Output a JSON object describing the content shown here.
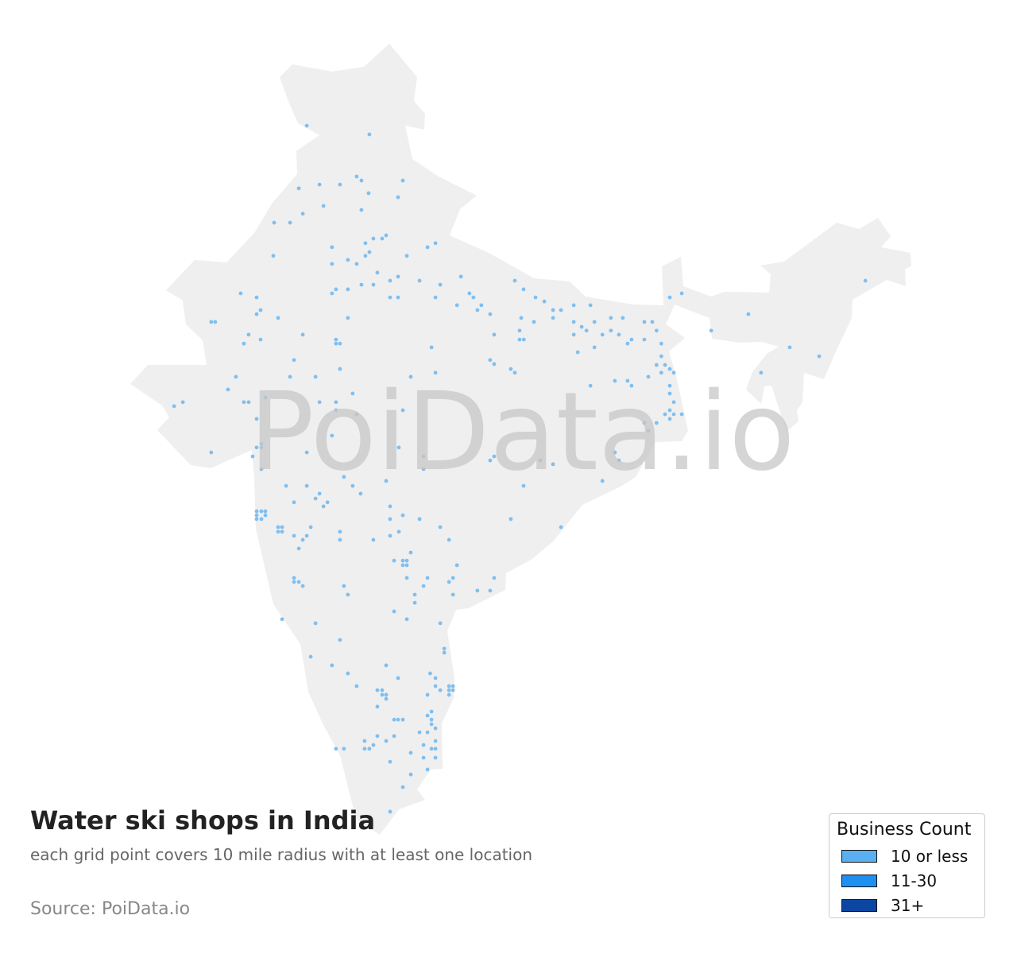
{
  "title": "Water ski shops in India",
  "subtitle": "each grid point covers 10 mile radius with at least one location",
  "source": "Source: PoiData.io",
  "watermark": "PoiData.io",
  "colors": {
    "land": "#efefef",
    "point": "#7fbff0"
  },
  "legend": {
    "title": "Business Count",
    "items": [
      {
        "label": "10 or less",
        "color": "#5aaff0"
      },
      {
        "label": "11-30",
        "color": "#1e90f0"
      },
      {
        "label": "31+",
        "color": "#0b47a1"
      }
    ]
  },
  "points": [
    [
      74.82,
      32.67
    ],
    [
      77.18,
      32.37
    ],
    [
      74.52,
      30.5
    ],
    [
      75.3,
      30.63
    ],
    [
      76.07,
      30.63
    ],
    [
      76.7,
      30.91
    ],
    [
      76.88,
      30.77
    ],
    [
      77.15,
      30.33
    ],
    [
      78.44,
      30.77
    ],
    [
      78.26,
      30.19
    ],
    [
      75.45,
      29.89
    ],
    [
      74.67,
      29.62
    ],
    [
      76.88,
      29.75
    ],
    [
      73.59,
      29.31
    ],
    [
      74.19,
      29.31
    ],
    [
      77.03,
      28.6
    ],
    [
      77.33,
      28.76
    ],
    [
      77.66,
      28.76
    ],
    [
      77.81,
      28.87
    ],
    [
      77.18,
      28.29
    ],
    [
      77.03,
      28.16
    ],
    [
      73.56,
      28.16
    ],
    [
      75.77,
      28.46
    ],
    [
      75.77,
      27.88
    ],
    [
      76.37,
      28.02
    ],
    [
      76.7,
      27.88
    ],
    [
      78.59,
      28.16
    ],
    [
      79.37,
      28.46
    ],
    [
      79.67,
      28.6
    ],
    [
      77.48,
      27.58
    ],
    [
      77.96,
      27.3
    ],
    [
      78.26,
      27.44
    ],
    [
      76.88,
      27.16
    ],
    [
      77.33,
      27.16
    ],
    [
      75.92,
      27.0
    ],
    [
      75.77,
      26.86
    ],
    [
      76.37,
      27.0
    ],
    [
      77.96,
      26.72
    ],
    [
      78.26,
      26.72
    ],
    [
      79.07,
      27.3
    ],
    [
      79.85,
      27.16
    ],
    [
      80.63,
      27.44
    ],
    [
      79.67,
      26.72
    ],
    [
      80.48,
      26.45
    ],
    [
      80.95,
      26.86
    ],
    [
      81.1,
      26.72
    ],
    [
      81.4,
      26.45
    ],
    [
      81.25,
      26.28
    ],
    [
      81.73,
      26.14
    ],
    [
      82.66,
      27.3
    ],
    [
      82.99,
      27.0
    ],
    [
      83.44,
      26.72
    ],
    [
      83.77,
      26.58
    ],
    [
      84.1,
      26.28
    ],
    [
      84.4,
      26.28
    ],
    [
      84.88,
      26.45
    ],
    [
      85.51,
      26.45
    ],
    [
      82.9,
      26.01
    ],
    [
      83.38,
      25.87
    ],
    [
      84.1,
      26.01
    ],
    [
      84.88,
      25.87
    ],
    [
      85.18,
      25.7
    ],
    [
      85.36,
      25.57
    ],
    [
      85.66,
      25.87
    ],
    [
      82.84,
      25.57
    ],
    [
      82.84,
      25.26
    ],
    [
      83.0,
      25.26
    ],
    [
      81.88,
      25.43
    ],
    [
      86.28,
      26.01
    ],
    [
      86.73,
      26.01
    ],
    [
      87.54,
      25.87
    ],
    [
      87.84,
      25.87
    ],
    [
      85.96,
      25.43
    ],
    [
      86.28,
      25.57
    ],
    [
      86.58,
      25.43
    ],
    [
      84.88,
      25.43
    ],
    [
      85.03,
      24.82
    ],
    [
      85.66,
      24.99
    ],
    [
      87.06,
      25.26
    ],
    [
      86.91,
      25.12
    ],
    [
      87.54,
      25.26
    ],
    [
      88.0,
      25.57
    ],
    [
      88.18,
      25.12
    ],
    [
      88.18,
      24.68
    ],
    [
      88.0,
      24.38
    ],
    [
      88.32,
      24.38
    ],
    [
      88.5,
      24.24
    ],
    [
      88.65,
      24.11
    ],
    [
      88.18,
      24.11
    ],
    [
      87.69,
      23.97
    ],
    [
      88.5,
      23.66
    ],
    [
      88.5,
      23.39
    ],
    [
      88.65,
      23.09
    ],
    [
      88.5,
      22.81
    ],
    [
      88.65,
      22.67
    ],
    [
      88.32,
      22.67
    ],
    [
      88.95,
      22.67
    ],
    [
      88.5,
      22.51
    ],
    [
      88.0,
      22.37
    ],
    [
      87.54,
      22.37
    ],
    [
      87.69,
      22.1
    ],
    [
      86.43,
      23.83
    ],
    [
      86.91,
      23.83
    ],
    [
      87.06,
      23.66
    ],
    [
      85.51,
      23.66
    ],
    [
      81.73,
      24.55
    ],
    [
      81.88,
      24.41
    ],
    [
      82.51,
      24.24
    ],
    [
      82.66,
      24.11
    ],
    [
      79.52,
      24.99
    ],
    [
      79.67,
      24.11
    ],
    [
      78.74,
      23.97
    ],
    [
      72.33,
      26.86
    ],
    [
      72.93,
      26.72
    ],
    [
      73.08,
      26.28
    ],
    [
      72.93,
      26.14
    ],
    [
      73.74,
      26.01
    ],
    [
      71.22,
      25.87
    ],
    [
      71.37,
      25.87
    ],
    [
      72.63,
      25.43
    ],
    [
      72.45,
      25.12
    ],
    [
      73.08,
      25.26
    ],
    [
      74.67,
      25.43
    ],
    [
      74.34,
      24.55
    ],
    [
      75.92,
      25.26
    ],
    [
      75.92,
      25.12
    ],
    [
      76.07,
      25.12
    ],
    [
      76.37,
      26.01
    ],
    [
      76.07,
      24.24
    ],
    [
      74.19,
      23.97
    ],
    [
      75.15,
      23.97
    ],
    [
      72.15,
      23.97
    ],
    [
      71.85,
      23.53
    ],
    [
      69.82,
      22.95
    ],
    [
      70.15,
      23.09
    ],
    [
      72.45,
      23.09
    ],
    [
      72.63,
      23.09
    ],
    [
      73.26,
      23.25
    ],
    [
      72.93,
      22.51
    ],
    [
      75.3,
      23.09
    ],
    [
      75.92,
      23.09
    ],
    [
      76.55,
      23.39
    ],
    [
      75.92,
      22.81
    ],
    [
      76.7,
      22.67
    ],
    [
      73.11,
      21.65
    ],
    [
      72.93,
      21.52
    ],
    [
      73.11,
      21.52
    ],
    [
      72.78,
      21.21
    ],
    [
      73.11,
      20.77
    ],
    [
      71.22,
      21.35
    ],
    [
      74.82,
      21.35
    ],
    [
      75.77,
      21.93
    ],
    [
      78.29,
      21.52
    ],
    [
      78.44,
      22.81
    ],
    [
      79.22,
      21.21
    ],
    [
      79.22,
      20.77
    ],
    [
      81.88,
      21.21
    ],
    [
      81.73,
      21.07
    ],
    [
      83.62,
      21.07
    ],
    [
      84.1,
      20.94
    ],
    [
      82.99,
      20.19
    ],
    [
      86.43,
      21.35
    ],
    [
      86.58,
      21.07
    ],
    [
      85.96,
      20.36
    ],
    [
      74.04,
      20.19
    ],
    [
      74.82,
      20.19
    ],
    [
      75.3,
      19.92
    ],
    [
      75.15,
      19.75
    ],
    [
      75.6,
      19.62
    ],
    [
      75.45,
      19.48
    ],
    [
      76.22,
      20.5
    ],
    [
      76.55,
      20.19
    ],
    [
      76.85,
      19.92
    ],
    [
      77.81,
      20.36
    ],
    [
      74.34,
      19.62
    ],
    [
      72.93,
      19.31
    ],
    [
      73.11,
      19.31
    ],
    [
      73.26,
      19.31
    ],
    [
      72.93,
      19.17
    ],
    [
      73.26,
      19.17
    ],
    [
      72.93,
      19.04
    ],
    [
      73.11,
      19.04
    ],
    [
      73.74,
      18.76
    ],
    [
      73.89,
      18.76
    ],
    [
      73.74,
      18.6
    ],
    [
      73.89,
      18.6
    ],
    [
      74.34,
      18.46
    ],
    [
      74.67,
      18.32
    ],
    [
      74.82,
      18.46
    ],
    [
      74.97,
      18.76
    ],
    [
      74.52,
      18.02
    ],
    [
      76.07,
      18.6
    ],
    [
      76.07,
      18.32
    ],
    [
      77.96,
      19.48
    ],
    [
      77.96,
      19.04
    ],
    [
      78.44,
      19.17
    ],
    [
      78.29,
      18.6
    ],
    [
      77.96,
      18.46
    ],
    [
      77.33,
      18.32
    ],
    [
      79.07,
      19.04
    ],
    [
      79.85,
      18.76
    ],
    [
      80.18,
      18.32
    ],
    [
      82.51,
      19.04
    ],
    [
      84.4,
      18.76
    ],
    [
      78.11,
      17.6
    ],
    [
      78.44,
      17.6
    ],
    [
      78.59,
      17.6
    ],
    [
      78.44,
      17.44
    ],
    [
      78.59,
      17.44
    ],
    [
      78.74,
      17.88
    ],
    [
      78.59,
      17.0
    ],
    [
      79.37,
      17.0
    ],
    [
      79.22,
      16.72
    ],
    [
      78.89,
      16.42
    ],
    [
      78.89,
      16.14
    ],
    [
      80.18,
      16.86
    ],
    [
      80.33,
      17.0
    ],
    [
      80.48,
      17.44
    ],
    [
      80.33,
      16.42
    ],
    [
      81.25,
      16.56
    ],
    [
      81.73,
      16.56
    ],
    [
      81.88,
      17.0
    ],
    [
      74.34,
      17.0
    ],
    [
      74.34,
      16.86
    ],
    [
      74.52,
      16.86
    ],
    [
      74.67,
      16.72
    ],
    [
      76.22,
      16.72
    ],
    [
      76.37,
      16.42
    ],
    [
      73.89,
      15.57
    ],
    [
      75.15,
      15.43
    ],
    [
      78.11,
      15.84
    ],
    [
      78.59,
      15.57
    ],
    [
      79.85,
      15.43
    ],
    [
      80.0,
      14.55
    ],
    [
      80.0,
      14.41
    ],
    [
      76.07,
      14.85
    ],
    [
      74.97,
      14.27
    ],
    [
      75.77,
      13.97
    ],
    [
      76.37,
      13.69
    ],
    [
      76.7,
      13.25
    ],
    [
      77.81,
      13.97
    ],
    [
      78.26,
      13.53
    ],
    [
      79.47,
      13.69
    ],
    [
      79.67,
      13.53
    ],
    [
      79.67,
      13.25
    ],
    [
      79.85,
      13.11
    ],
    [
      80.18,
      13.25
    ],
    [
      80.33,
      13.25
    ],
    [
      80.18,
      13.11
    ],
    [
      80.33,
      13.11
    ],
    [
      80.18,
      12.95
    ],
    [
      79.37,
      12.95
    ],
    [
      77.48,
      13.11
    ],
    [
      77.66,
      13.11
    ],
    [
      77.66,
      12.95
    ],
    [
      77.81,
      12.95
    ],
    [
      77.81,
      12.81
    ],
    [
      77.48,
      12.54
    ],
    [
      79.52,
      12.37
    ],
    [
      79.37,
      12.23
    ],
    [
      79.52,
      12.09
    ],
    [
      79.52,
      11.93
    ],
    [
      79.67,
      11.79
    ],
    [
      79.37,
      11.65
    ],
    [
      78.11,
      12.09
    ],
    [
      78.26,
      12.09
    ],
    [
      78.44,
      12.09
    ],
    [
      79.07,
      11.65
    ],
    [
      77.48,
      11.52
    ],
    [
      77.81,
      11.35
    ],
    [
      78.11,
      11.52
    ],
    [
      77.33,
      11.21
    ],
    [
      77.0,
      11.35
    ],
    [
      77.0,
      11.08
    ],
    [
      77.18,
      11.08
    ],
    [
      75.92,
      11.08
    ],
    [
      76.22,
      11.08
    ],
    [
      79.22,
      11.21
    ],
    [
      79.52,
      11.08
    ],
    [
      79.67,
      11.35
    ],
    [
      79.67,
      11.08
    ],
    [
      78.74,
      10.94
    ],
    [
      79.22,
      10.77
    ],
    [
      79.67,
      10.77
    ],
    [
      77.96,
      10.63
    ],
    [
      79.37,
      10.36
    ],
    [
      78.74,
      10.19
    ],
    [
      78.44,
      9.75
    ],
    [
      77.96,
      8.9
    ],
    [
      88.95,
      26.86
    ],
    [
      88.5,
      26.72
    ],
    [
      90.06,
      25.57
    ],
    [
      91.46,
      26.14
    ],
    [
      93.02,
      24.99
    ],
    [
      94.13,
      24.68
    ],
    [
      91.94,
      24.11
    ],
    [
      95.87,
      27.3
    ]
  ]
}
